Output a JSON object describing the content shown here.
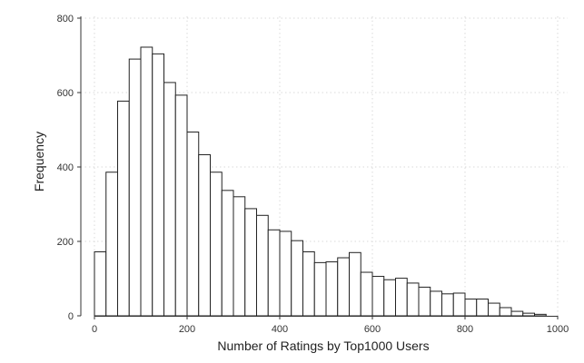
{
  "chart_data": {
    "type": "bar",
    "subtype": "histogram",
    "xlabel": "Number of Ratings by Top1000 Users",
    "ylabel": "Frequency",
    "xlim": [
      0,
      1000
    ],
    "ylim": [
      0,
      800
    ],
    "xticks": [
      0,
      200,
      400,
      600,
      800,
      1000
    ],
    "yticks": [
      0,
      200,
      400,
      600,
      800
    ],
    "grid": true,
    "bin_width": 25,
    "bins": [
      {
        "start": 0,
        "end": 25,
        "value": 172
      },
      {
        "start": 25,
        "end": 50,
        "value": 386
      },
      {
        "start": 50,
        "end": 75,
        "value": 577
      },
      {
        "start": 75,
        "end": 100,
        "value": 690
      },
      {
        "start": 100,
        "end": 125,
        "value": 722
      },
      {
        "start": 125,
        "end": 150,
        "value": 704
      },
      {
        "start": 150,
        "end": 175,
        "value": 627
      },
      {
        "start": 175,
        "end": 200,
        "value": 593
      },
      {
        "start": 200,
        "end": 225,
        "value": 494
      },
      {
        "start": 225,
        "end": 250,
        "value": 433
      },
      {
        "start": 250,
        "end": 275,
        "value": 386
      },
      {
        "start": 275,
        "end": 300,
        "value": 337
      },
      {
        "start": 300,
        "end": 325,
        "value": 320
      },
      {
        "start": 325,
        "end": 350,
        "value": 288
      },
      {
        "start": 350,
        "end": 375,
        "value": 270
      },
      {
        "start": 375,
        "end": 400,
        "value": 231
      },
      {
        "start": 400,
        "end": 425,
        "value": 227
      },
      {
        "start": 425,
        "end": 450,
        "value": 202
      },
      {
        "start": 450,
        "end": 475,
        "value": 172
      },
      {
        "start": 475,
        "end": 500,
        "value": 143
      },
      {
        "start": 500,
        "end": 525,
        "value": 145
      },
      {
        "start": 525,
        "end": 550,
        "value": 156
      },
      {
        "start": 550,
        "end": 575,
        "value": 170
      },
      {
        "start": 575,
        "end": 600,
        "value": 117
      },
      {
        "start": 600,
        "end": 625,
        "value": 106
      },
      {
        "start": 625,
        "end": 650,
        "value": 97
      },
      {
        "start": 650,
        "end": 675,
        "value": 101
      },
      {
        "start": 675,
        "end": 700,
        "value": 88
      },
      {
        "start": 700,
        "end": 725,
        "value": 77
      },
      {
        "start": 725,
        "end": 750,
        "value": 66
      },
      {
        "start": 750,
        "end": 775,
        "value": 59
      },
      {
        "start": 775,
        "end": 800,
        "value": 61
      },
      {
        "start": 800,
        "end": 825,
        "value": 45
      },
      {
        "start": 825,
        "end": 850,
        "value": 45
      },
      {
        "start": 850,
        "end": 875,
        "value": 34
      },
      {
        "start": 875,
        "end": 900,
        "value": 22
      },
      {
        "start": 900,
        "end": 925,
        "value": 12
      },
      {
        "start": 925,
        "end": 950,
        "value": 7
      },
      {
        "start": 950,
        "end": 975,
        "value": 4
      }
    ]
  }
}
